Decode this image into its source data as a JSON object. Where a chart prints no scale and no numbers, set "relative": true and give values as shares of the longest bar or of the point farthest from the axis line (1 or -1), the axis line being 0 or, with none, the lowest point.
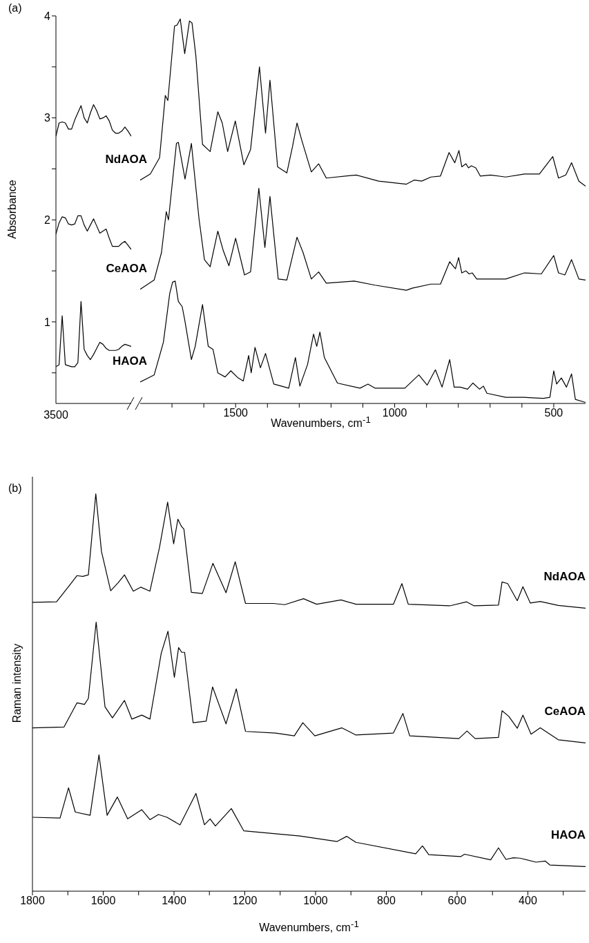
{
  "chart_data": [
    {
      "type": "line",
      "title": "(a)",
      "ylabel": "Absorbance",
      "annotations": [
        "3500"
      ],
      "categories": [
        null,
        null,
        null,
        null,
        null,
        null,
        null,
        null,
        null,
        null,
        null,
        null,
        null,
        null,
        null,
        null,
        null,
        null,
        null,
        null,
        null,
        null,
        null,
        null,
        null
      ],
      "ylim": [
        0.2,
        4
      ],
      "yticks": [
        {
          "value": 0.5,
          "label": null
        },
        1,
        {
          "value": 1.5,
          "label": null
        },
        2,
        {
          "value": 2.5,
          "label": null
        },
        3,
        {
          "value": 3.5,
          "label": null
        },
        4
      ],
      "series": [
        {
          "color": "#000000",
          "values": [
            2.82,
            2.95,
            2.96,
            2.95,
            2.89,
            2.89,
            2.98,
            3.05,
            3.12,
            3.0,
            2.95,
            3.05,
            3.13,
            3.07,
            2.99,
            3.0,
            3.02,
            2.97,
            2.88,
            2.85,
            2.85,
            2.87,
            2.91,
            2.87,
            2.82
          ]
        },
        {
          "color": "#000000",
          "values": [
            1.86,
            1.97,
            2.03,
            2.02,
            1.96,
            1.95,
            1.96,
            2.04,
            2.04,
            1.95,
            1.89,
            1.95,
            2.01,
            1.94,
            1.87,
            1.89,
            1.91,
            1.82,
            1.74,
            1.74,
            1.74,
            1.77,
            1.79,
            1.75,
            1.71
          ]
        },
        {
          "color": "#000000",
          "values": [
            0.56,
            0.58,
            1.06,
            0.58,
            0.57,
            0.56,
            0.56,
            0.6,
            1.2,
            0.73,
            0.67,
            0.63,
            0.68,
            0.74,
            0.8,
            0.78,
            0.74,
            0.72,
            0.72,
            0.72,
            0.73,
            0.76,
            0.78,
            0.77,
            0.76
          ]
        }
      ]
    },
    {
      "type": "line",
      "xlabel": "Wavenumbers, cm$^{-1}$",
      "xlim": [
        1800,
        400
      ],
      "xticks": [
        {
          "value": 1700,
          "label": null
        },
        {
          "value": 1600,
          "label": null
        },
        1500,
        {
          "value": 1400,
          "label": null
        },
        {
          "value": 1300,
          "label": null
        },
        {
          "value": 1200,
          "label": null
        },
        {
          "value": 1100,
          "label": null
        },
        1000,
        {
          "value": 900,
          "label": null
        },
        {
          "value": 800,
          "label": null
        },
        {
          "value": 700,
          "label": null
        },
        {
          "value": 600,
          "label": null
        },
        500
      ],
      "ylim": [
        0.2,
        4
      ],
      "tick_labels": "x",
      "series": [
        {
          "name": "NdAOA",
          "color": "#000000",
          "x": [
            1800,
            1768,
            1739,
            1721,
            1713,
            1692,
            1684,
            1674,
            1660,
            1645,
            1637,
            1625,
            1604,
            1580,
            1556,
            1542,
            1525,
            1501,
            1474,
            1453,
            1425,
            1406,
            1392,
            1368,
            1339,
            1321,
            1307,
            1292,
            1262,
            1239,
            1215,
            1121,
            1051,
            963,
            939,
            915,
            886,
            856,
            829,
            811,
            798,
            789,
            776,
            768,
            759,
            745,
            731,
            698,
            651,
            592,
            545,
            503,
            485,
            462,
            444,
            421,
            400
          ],
          "values": [
            2.39,
            2.45,
            2.61,
            3.22,
            3.17,
            3.9,
            3.91,
            3.97,
            3.63,
            3.95,
            3.93,
            3.61,
            2.74,
            2.67,
            3.06,
            2.95,
            2.67,
            2.97,
            2.54,
            2.69,
            3.5,
            2.85,
            3.37,
            2.52,
            2.46,
            2.72,
            2.95,
            2.78,
            2.47,
            2.55,
            2.41,
            2.44,
            2.38,
            2.35,
            2.39,
            2.38,
            2.42,
            2.43,
            2.66,
            2.56,
            2.68,
            2.52,
            2.55,
            2.51,
            2.53,
            2.51,
            2.43,
            2.44,
            2.42,
            2.45,
            2.45,
            2.62,
            2.41,
            2.44,
            2.56,
            2.38,
            2.33
          ]
        },
        {
          "name": "CeAOA",
          "color": "#000000",
          "x": [
            1800,
            1756,
            1733,
            1718,
            1711,
            1686,
            1680,
            1659,
            1639,
            1615,
            1598,
            1580,
            1556,
            1539,
            1521,
            1500,
            1472,
            1453,
            1427,
            1408,
            1392,
            1366,
            1339,
            1307,
            1288,
            1262,
            1239,
            1215,
            1127,
            1062,
            963,
            945,
            886,
            856,
            827,
            809,
            799,
            789,
            776,
            766,
            756,
            742,
            721,
            651,
            592,
            539,
            500,
            485,
            465,
            444,
            421,
            400
          ],
          "values": [
            1.32,
            1.41,
            1.68,
            2.08,
            2,
            2.75,
            2.76,
            2.4,
            2.75,
            2.01,
            1.61,
            1.54,
            1.89,
            1.7,
            1.55,
            1.82,
            1.46,
            1.49,
            2.31,
            1.73,
            2.23,
            1.42,
            1.41,
            1.83,
            1.68,
            1.42,
            1.49,
            1.38,
            1.4,
            1.36,
            1.31,
            1.33,
            1.37,
            1.37,
            1.59,
            1.52,
            1.63,
            1.48,
            1.5,
            1.47,
            1.48,
            1.42,
            1.42,
            1.42,
            1.48,
            1.47,
            1.65,
            1.48,
            1.46,
            1.61,
            1.42,
            1.41
          ]
        },
        {
          "name": "HAOA",
          "color": "#000000",
          "x": [
            1800,
            1756,
            1727,
            1707,
            1698,
            1690,
            1680,
            1668,
            1660,
            1639,
            1627,
            1604,
            1586,
            1571,
            1556,
            1533,
            1515,
            1492,
            1476,
            1459,
            1451,
            1439,
            1422,
            1406,
            1380,
            1333,
            1312,
            1298,
            1274,
            1255,
            1245,
            1235,
            1221,
            1180,
            1109,
            1084,
            1062,
            968,
            924,
            898,
            872,
            851,
            827,
            813,
            794,
            771,
            754,
            733,
            721,
            710,
            651,
            592,
            533,
            512,
            500,
            491,
            476,
            460,
            444,
            432,
            400
          ],
          "values": [
            0.41,
            0.48,
            0.8,
            1.28,
            1.39,
            1.4,
            1.2,
            1.15,
            1.02,
            0.63,
            0.76,
            1.17,
            0.76,
            0.73,
            0.5,
            0.46,
            0.52,
            0.45,
            0.42,
            0.67,
            0.5,
            0.75,
            0.55,
            0.69,
            0.39,
            0.35,
            0.65,
            0.37,
            0.58,
            0.88,
            0.76,
            0.9,
            0.65,
            0.4,
            0.35,
            0.39,
            0.35,
            0.35,
            0.48,
            0.38,
            0.53,
            0.36,
            0.63,
            0.36,
            0.36,
            0.34,
            0.4,
            0.34,
            0.37,
            0.3,
            0.26,
            0.26,
            0.25,
            0.26,
            0.52,
            0.39,
            0.45,
            0.36,
            0.49,
            0.24,
            0.21
          ]
        }
      ]
    },
    {
      "type": "line",
      "title": "(b)",
      "xlabel": "Wavenumbers, cm$^{-1}$",
      "ylabel": "Raman intensity",
      "relative": true,
      "xlim": [
        1800,
        237
      ],
      "xticks": [
        1800,
        {
          "value": 1700,
          "label": null
        },
        1600,
        {
          "value": 1500,
          "label": null
        },
        1400,
        {
          "value": 1300,
          "label": null
        },
        1200,
        {
          "value": 1100,
          "label": null
        },
        1000,
        {
          "value": 900,
          "label": null
        },
        800,
        {
          "value": 700,
          "label": null
        },
        600,
        {
          "value": 500,
          "label": null
        },
        400,
        {
          "value": 300,
          "label": null
        }
      ],
      "series": [
        {
          "name": "NdAOA",
          "color": "#000000",
          "x": [
            1800,
            1732,
            1695,
            1674,
            1658,
            1642,
            1621,
            1605,
            1579,
            1558,
            1540,
            1515,
            1494,
            1468,
            1441,
            1418,
            1401,
            1389,
            1379,
            1372,
            1351,
            1320,
            1290,
            1253,
            1227,
            1198,
            1119,
            1087,
            1034,
            997,
            928,
            886,
            780,
            756,
            738,
            621,
            573,
            552,
            483,
            473,
            457,
            430,
            414,
            393,
            365,
            314,
            237
          ],
          "values": [
            0.727,
            0.728,
            0.77,
            0.794,
            0.792,
            0.796,
            1,
            0.855,
            0.756,
            0.776,
            0.796,
            0.755,
            0.765,
            0.755,
            0.865,
            0.979,
            0.874,
            0.936,
            0.918,
            0.911,
            0.752,
            0.749,
            0.825,
            0.751,
            0.829,
            0.724,
            0.724,
            0.721,
            0.736,
            0.722,
            0.733,
            0.722,
            0.722,
            0.774,
            0.722,
            0.718,
            0.728,
            0.718,
            0.72,
            0.778,
            0.774,
            0.731,
            0.766,
            0.725,
            0.729,
            0.719,
            0.712
          ]
        },
        {
          "name": "CeAOA",
          "color": "#000000",
          "x": [
            1800,
            1711,
            1674,
            1653,
            1642,
            1620,
            1595,
            1574,
            1540,
            1519,
            1491,
            1468,
            1436,
            1417,
            1399,
            1387,
            1378,
            1370,
            1346,
            1309,
            1291,
            1253,
            1224,
            1198,
            1113,
            1060,
            1036,
            1002,
            926,
            886,
            780,
            753,
            734,
            595,
            572,
            549,
            483,
            473,
            454,
            430,
            414,
            391,
            365,
            314,
            237
          ],
          "values": [
            0.411,
            0.413,
            0.474,
            0.47,
            0.485,
            0.677,
            0.464,
            0.436,
            0.48,
            0.433,
            0.443,
            0.433,
            0.599,
            0.654,
            0.538,
            0.613,
            0.601,
            0.601,
            0.424,
            0.428,
            0.514,
            0.421,
            0.509,
            0.402,
            0.398,
            0.391,
            0.424,
            0.391,
            0.411,
            0.393,
            0.398,
            0.447,
            0.391,
            0.384,
            0.403,
            0.384,
            0.387,
            0.454,
            0.44,
            0.41,
            0.443,
            0.395,
            0.411,
            0.381,
            0.373
          ]
        },
        {
          "name": "HAOA",
          "color": "#000000",
          "x": [
            1800,
            1722,
            1698,
            1679,
            1637,
            1612,
            1589,
            1560,
            1531,
            1491,
            1468,
            1444,
            1420,
            1383,
            1338,
            1314,
            1298,
            1283,
            1238,
            1203,
            1044,
            939,
            912,
            886,
            717,
            698,
            680,
            590,
            579,
            505,
            483,
            462,
            441,
            422,
            377,
            351,
            338,
            237
          ],
          "values": [
            0.186,
            0.184,
            0.26,
            0.199,
            0.191,
            0.343,
            0.191,
            0.237,
            0.182,
            0.205,
            0.18,
            0.193,
            0.186,
            0.167,
            0.246,
            0.167,
            0.182,
            0.164,
            0.208,
            0.152,
            0.139,
            0.125,
            0.138,
            0.123,
            0.094,
            0.114,
            0.092,
            0.087,
            0.093,
            0.079,
            0.109,
            0.08,
            0.084,
            0.083,
            0.073,
            0.076,
            0.066,
            0.062
          ]
        }
      ]
    }
  ]
}
